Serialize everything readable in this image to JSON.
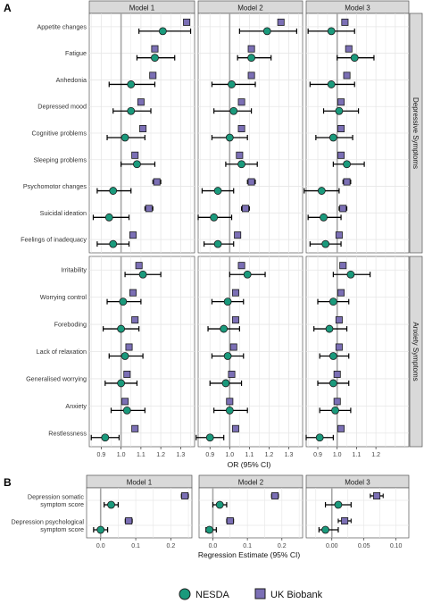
{
  "panels": {
    "A": "A",
    "B": "B"
  },
  "colors": {
    "nesda": "#1a9a7c",
    "ukb": "#7b6fb5",
    "panel_bg": "#ffffff",
    "grid": "#e6e6e6",
    "strip_bg": "#d9d9d9",
    "ref_line": "#a6a6a6"
  },
  "legend": [
    {
      "label": "NESDA",
      "shape": "circle"
    },
    {
      "label": "UK Biobank",
      "shape": "square"
    }
  ],
  "chart_data": [
    {
      "type": "forest",
      "panel": "A",
      "facets": [
        "Model 1",
        "Model 2",
        "Model 3"
      ],
      "row_groups": [
        "Depressive Symptoms",
        "Anxiety Symptoms"
      ],
      "xlabel": "OR (95% CI)",
      "xlim": [
        0.84,
        1.37
      ],
      "xticks": [
        0.9,
        1.0,
        1.1,
        1.2,
        1.3
      ],
      "xtick_labels_model3": [
        "0.9",
        "1.0",
        "1.1",
        "1.2"
      ],
      "reference_line": 1.0,
      "groups": [
        {
          "name": "Depressive Symptoms",
          "items": [
            "Appetite changes",
            "Fatigue",
            "Anhedonia",
            "Depressed mood",
            "Cognitive problems",
            "Sleeping problems",
            "Psychomotor changes",
            "Suicidal ideation",
            "Feelings of inadequacy"
          ],
          "nesda": [
            [
              [
                1.21,
                1.09,
                1.35
              ],
              [
                1.19,
                1.05,
                1.34
              ],
              [
                0.97,
                0.85,
                1.09
              ]
            ],
            [
              [
                1.17,
                1.08,
                1.27
              ],
              [
                1.11,
                1.04,
                1.21
              ],
              [
                1.09,
                1.0,
                1.19
              ]
            ],
            [
              [
                1.05,
                0.94,
                1.17
              ],
              [
                1.01,
                0.91,
                1.13
              ],
              [
                0.97,
                0.86,
                1.09
              ]
            ],
            [
              [
                1.05,
                0.96,
                1.15
              ],
              [
                1.02,
                0.92,
                1.11
              ],
              [
                1.01,
                0.93,
                1.11
              ]
            ],
            [
              [
                1.02,
                0.93,
                1.12
              ],
              [
                1.0,
                0.91,
                1.09
              ],
              [
                0.98,
                0.89,
                1.08
              ]
            ],
            [
              [
                1.08,
                1.0,
                1.17
              ],
              [
                1.06,
                0.98,
                1.14
              ],
              [
                1.05,
                0.98,
                1.14
              ]
            ],
            [
              [
                0.96,
                0.88,
                1.05
              ],
              [
                0.94,
                0.86,
                1.02
              ],
              [
                0.92,
                0.83,
                1.01
              ]
            ],
            [
              [
                0.94,
                0.86,
                1.04
              ],
              [
                0.92,
                0.84,
                1.01
              ],
              [
                0.93,
                0.85,
                1.02
              ]
            ],
            [
              [
                0.96,
                0.88,
                1.04
              ],
              [
                0.94,
                0.87,
                1.02
              ],
              [
                0.94,
                0.86,
                1.02
              ]
            ]
          ],
          "ukb": [
            [
              [
                1.33,
                1.32,
                1.34
              ],
              [
                1.26,
                1.25,
                1.27
              ],
              [
                1.04,
                1.03,
                1.05
              ]
            ],
            [
              [
                1.17,
                1.16,
                1.18
              ],
              [
                1.11,
                1.1,
                1.12
              ],
              [
                1.06,
                1.05,
                1.07
              ]
            ],
            [
              [
                1.16,
                1.15,
                1.17
              ],
              [
                1.11,
                1.1,
                1.12
              ],
              [
                1.05,
                1.04,
                1.06
              ]
            ],
            [
              [
                1.1,
                1.09,
                1.11
              ],
              [
                1.06,
                1.05,
                1.07
              ],
              [
                1.02,
                1.01,
                1.03
              ]
            ],
            [
              [
                1.11,
                1.1,
                1.12
              ],
              [
                1.06,
                1.05,
                1.07
              ],
              [
                1.02,
                1.01,
                1.03
              ]
            ],
            [
              [
                1.07,
                1.06,
                1.08
              ],
              [
                1.05,
                1.04,
                1.06
              ],
              [
                1.02,
                1.01,
                1.03
              ]
            ],
            [
              [
                1.18,
                1.16,
                1.2
              ],
              [
                1.11,
                1.09,
                1.13
              ],
              [
                1.05,
                1.03,
                1.07
              ]
            ],
            [
              [
                1.14,
                1.12,
                1.16
              ],
              [
                1.08,
                1.06,
                1.1
              ],
              [
                1.03,
                1.01,
                1.05
              ]
            ],
            [
              [
                1.06,
                1.05,
                1.07
              ],
              [
                1.04,
                1.03,
                1.05
              ],
              [
                1.01,
                1.0,
                1.02
              ]
            ]
          ]
        },
        {
          "name": "Anxiety Symptoms",
          "items": [
            "Irritability",
            "Worrying control",
            "Foreboding",
            "Lack of relaxation",
            "Generalised worrying",
            "Anxiety",
            "Restlessness"
          ],
          "nesda": [
            [
              [
                1.11,
                1.02,
                1.2
              ],
              [
                1.09,
                1.0,
                1.18
              ],
              [
                1.07,
                0.98,
                1.17
              ]
            ],
            [
              [
                1.01,
                0.93,
                1.1
              ],
              [
                0.99,
                0.91,
                1.07
              ],
              [
                0.98,
                0.9,
                1.06
              ]
            ],
            [
              [
                1.0,
                0.91,
                1.09
              ],
              [
                0.97,
                0.89,
                1.05
              ],
              [
                0.96,
                0.88,
                1.05
              ]
            ],
            [
              [
                1.02,
                0.94,
                1.11
              ],
              [
                0.99,
                0.91,
                1.07
              ],
              [
                0.98,
                0.91,
                1.06
              ]
            ],
            [
              [
                1.0,
                0.92,
                1.08
              ],
              [
                0.98,
                0.9,
                1.06
              ],
              [
                0.98,
                0.9,
                1.06
              ]
            ],
            [
              [
                1.03,
                0.95,
                1.12
              ],
              [
                1.0,
                0.92,
                1.09
              ],
              [
                0.99,
                0.91,
                1.07
              ]
            ],
            [
              [
                0.92,
                0.85,
                0.99
              ],
              [
                0.9,
                0.83,
                0.97
              ],
              [
                0.91,
                0.84,
                0.98
              ]
            ]
          ],
          "ukb": [
            [
              [
                1.09,
                1.08,
                1.1
              ],
              [
                1.06,
                1.05,
                1.07
              ],
              [
                1.03,
                1.02,
                1.04
              ]
            ],
            [
              [
                1.06,
                1.05,
                1.07
              ],
              [
                1.03,
                1.02,
                1.04
              ],
              [
                1.02,
                1.01,
                1.03
              ]
            ],
            [
              [
                1.07,
                1.06,
                1.08
              ],
              [
                1.03,
                1.02,
                1.04
              ],
              [
                1.01,
                1.0,
                1.02
              ]
            ],
            [
              [
                1.04,
                1.03,
                1.05
              ],
              [
                1.02,
                1.01,
                1.03
              ],
              [
                1.01,
                1.0,
                1.02
              ]
            ],
            [
              [
                1.03,
                1.02,
                1.04
              ],
              [
                1.01,
                1.0,
                1.02
              ],
              [
                1.0,
                0.99,
                1.01
              ]
            ],
            [
              [
                1.02,
                1.01,
                1.03
              ],
              [
                1.0,
                0.99,
                1.01
              ],
              [
                1.0,
                0.99,
                1.01
              ]
            ],
            [
              [
                1.07,
                1.06,
                1.08
              ],
              [
                1.03,
                1.02,
                1.04
              ],
              [
                1.02,
                1.01,
                1.03
              ]
            ]
          ]
        }
      ]
    },
    {
      "type": "forest",
      "panel": "B",
      "facets": [
        "Model 1",
        "Model 2",
        "Model 3"
      ],
      "xlabel": "Regression Estimate (95% CI)",
      "xlims": [
        [
          -0.04,
          0.26
        ],
        [
          -0.04,
          0.26
        ],
        [
          -0.04,
          0.12
        ]
      ],
      "xticks": [
        [
          0.0,
          0.1,
          0.2
        ],
        [
          0.0,
          0.1,
          0.2
        ],
        [
          0.0,
          0.05,
          0.1
        ]
      ],
      "xtick_labels": [
        [
          "0.0",
          "0.1",
          "0.2"
        ],
        [
          "0.0",
          "0.1",
          "0.2"
        ],
        [
          "0.00",
          "0.05",
          "0.10"
        ]
      ],
      "reference_line": 0,
      "items": [
        "Depression somatic\nsymptom score",
        "Depression psychological\nsymptom score"
      ],
      "nesda": [
        [
          [
            0.03,
            0.01,
            0.05
          ],
          [
            0.02,
            0.0,
            0.04
          ],
          [
            0.01,
            -0.01,
            0.03
          ]
        ],
        [
          [
            0.0,
            -0.02,
            0.02
          ],
          [
            -0.01,
            -0.02,
            0.01
          ],
          [
            -0.01,
            -0.02,
            0.01
          ]
        ]
      ],
      "ukb": [
        [
          [
            0.24,
            0.23,
            0.25
          ],
          [
            0.18,
            0.17,
            0.19
          ],
          [
            0.07,
            0.06,
            0.08
          ]
        ],
        [
          [
            0.08,
            0.07,
            0.09
          ],
          [
            0.05,
            0.04,
            0.06
          ],
          [
            0.02,
            0.01,
            0.03
          ]
        ]
      ]
    }
  ]
}
